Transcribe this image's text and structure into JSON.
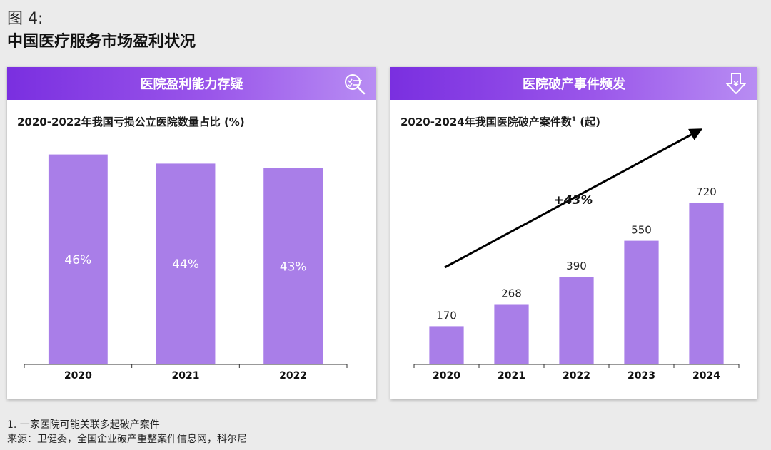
{
  "figure": {
    "label": "图 4:",
    "title": "中国医疗服务市场盈利状况"
  },
  "panels": {
    "left": {
      "header": "医院盈利能力存疑",
      "icon": "magnifier-checklist-icon"
    },
    "right": {
      "header": "医院破产事件频发",
      "icon": "down-arrow-yen-icon"
    }
  },
  "colors": {
    "bar": "#a97ee8",
    "header_start": "#7a2fe0",
    "header_end": "#b88df3",
    "arrow": "#000000"
  },
  "chart_data": [
    {
      "type": "bar",
      "title": "2020-2022年我国亏损公立医院数量占比 (%)",
      "categories": [
        "2020",
        "2021",
        "2022"
      ],
      "values": [
        46,
        44,
        43
      ],
      "value_labels": [
        "46%",
        "44%",
        "43%"
      ],
      "label_position": "inside",
      "ylim": [
        0,
        50
      ]
    },
    {
      "type": "bar",
      "title": "2020-2024年我国医院破产案件数",
      "title_sup": "1",
      "title_suffix": " (起)",
      "categories": [
        "2020",
        "2021",
        "2022",
        "2023",
        "2024"
      ],
      "values": [
        170,
        268,
        390,
        550,
        720
      ],
      "value_labels": [
        "170",
        "268",
        "390",
        "550",
        "720"
      ],
      "label_position": "above",
      "ylim": [
        0,
        850
      ],
      "annotation": {
        "text": "+43%",
        "type": "trend-arrow"
      }
    }
  ],
  "footnote": "1. 一家医院可能关联多起破产案件",
  "source": "来源：卫健委，全国企业破产重整案件信息网，科尔尼"
}
